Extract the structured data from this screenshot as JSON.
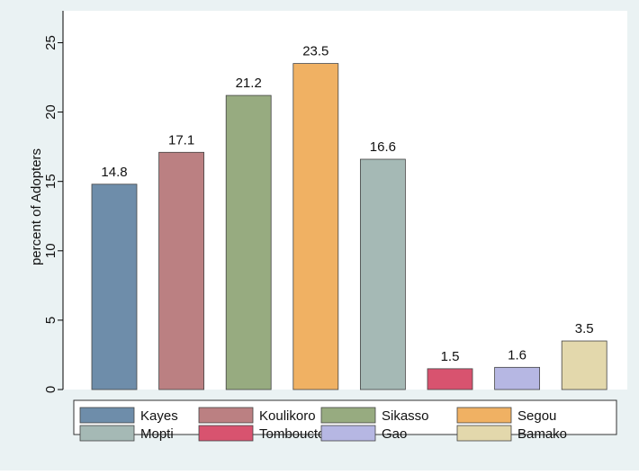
{
  "chart_data": {
    "type": "bar",
    "y_label": "percent of Adopters",
    "series": [
      {
        "name": "Kayes",
        "color": "#6e8daa",
        "values": [
          14.8
        ]
      },
      {
        "name": "Koulikoro",
        "color": "#bb8082",
        "values": [
          17.1
        ]
      },
      {
        "name": "Sikasso",
        "color": "#97ab80",
        "values": [
          21.2
        ]
      },
      {
        "name": "Segou",
        "color": "#f0b163",
        "values": [
          23.5
        ]
      },
      {
        "name": "Mopti",
        "color": "#a5b9b5",
        "values": [
          16.6
        ]
      },
      {
        "name": "Tombouctou",
        "color": "#d8536f",
        "values": [
          1.5
        ]
      },
      {
        "name": "Gao",
        "color": "#b6b7e3",
        "values": [
          1.6
        ]
      },
      {
        "name": "Bamako",
        "color": "#e3d8ac",
        "values": [
          3.5
        ]
      }
    ],
    "ylim": [
      0,
      27.3
    ],
    "yticks": [
      0,
      5,
      10,
      15,
      20,
      25
    ],
    "legend": "bottom"
  }
}
